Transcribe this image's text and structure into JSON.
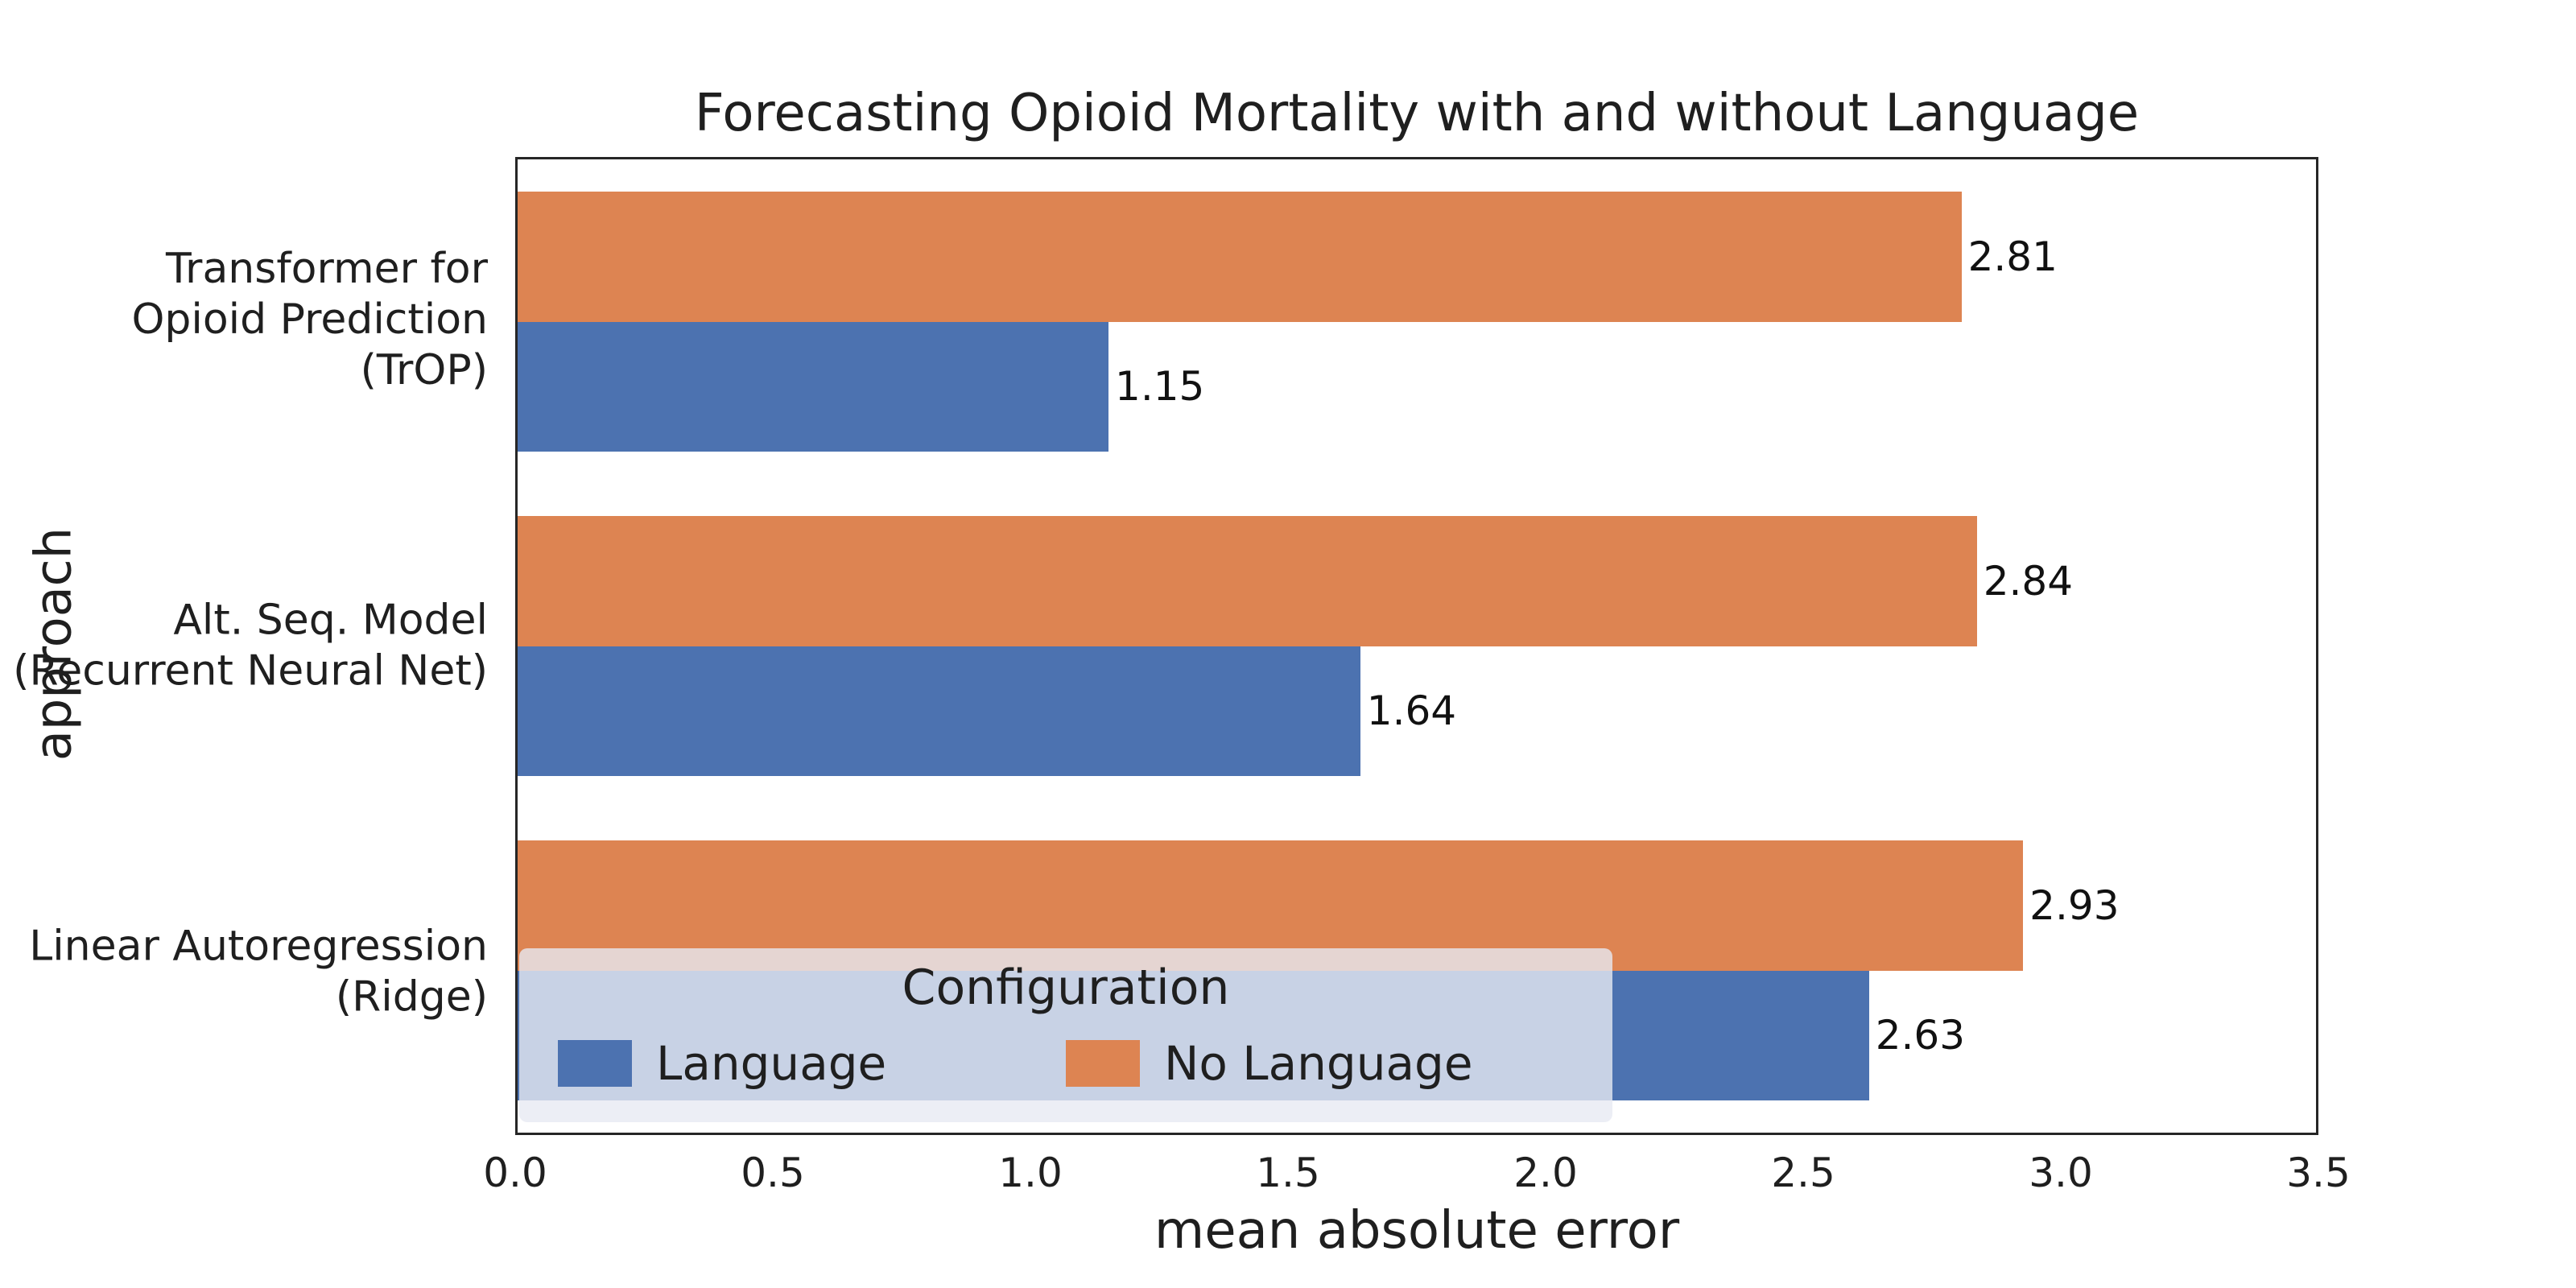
{
  "chart_data": {
    "type": "bar",
    "orientation": "horizontal",
    "title": "Forecasting Opioid Mortality with and without Language",
    "xlabel": "mean absolute error",
    "ylabel": "approach",
    "xlim": [
      0,
      3.5
    ],
    "xticks": [
      "0.0",
      "0.5",
      "1.0",
      "1.5",
      "2.0",
      "2.5",
      "3.0",
      "3.5"
    ],
    "grid": false,
    "categories": [
      "Transformer for\nOpioid Prediction\n(TrOP)",
      "Alt. Seq. Model\n(Recurrent Neural Net)",
      "Linear Autoregression\n(Ridge)"
    ],
    "series": [
      {
        "name": "No Language",
        "color": "#dd8452",
        "values": [
          2.81,
          2.84,
          2.93
        ],
        "labels": [
          "2.81",
          "2.84",
          "2.93"
        ]
      },
      {
        "name": "Language",
        "color": "#4c72b0",
        "values": [
          1.15,
          1.64,
          2.63
        ],
        "labels": [
          "1.15",
          "1.64",
          "2.63"
        ]
      }
    ],
    "legend": {
      "title": "Configuration",
      "position": "lower left",
      "entries": [
        {
          "label": "Language",
          "color": "#4c72b0"
        },
        {
          "label": "No Language",
          "color": "#dd8452"
        }
      ]
    }
  },
  "colors": {
    "background": "#ffffff",
    "axis_border": "#262626",
    "text": "#1f1f1f",
    "legend_background": "rgba(231,234,243,0.8)"
  }
}
